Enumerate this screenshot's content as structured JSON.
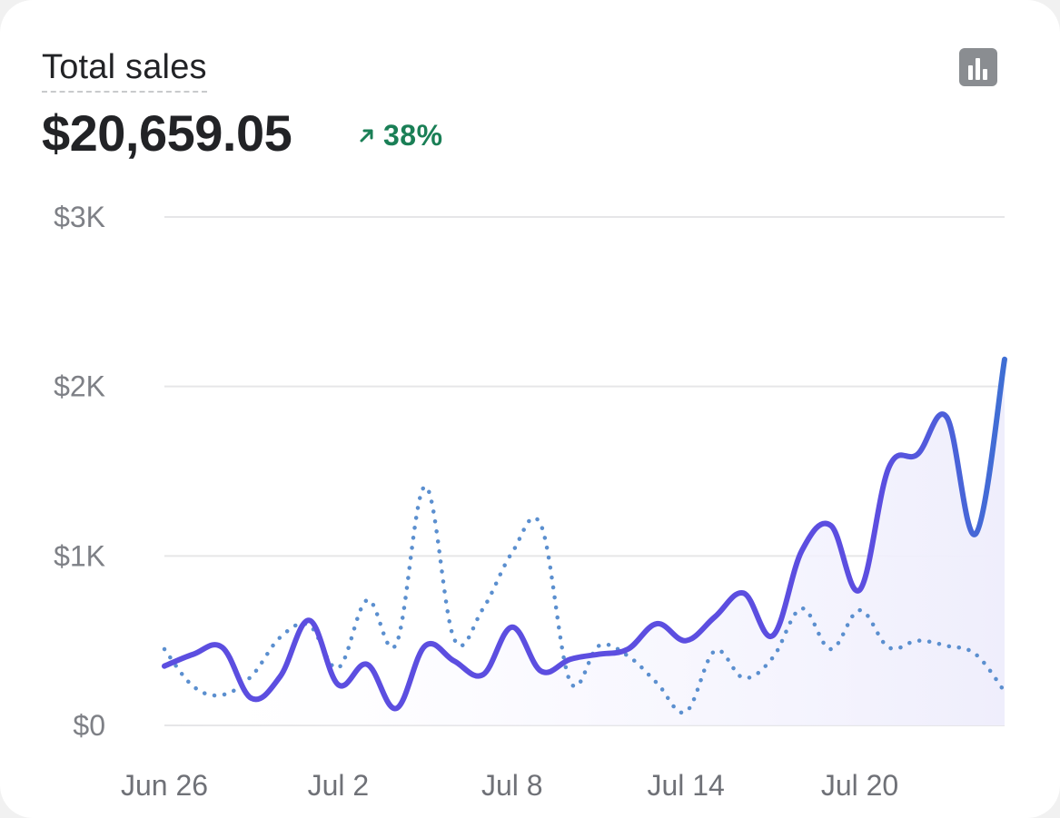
{
  "header": {
    "title": "Total sales",
    "total": "$20,659.05",
    "delta": "38%",
    "delta_direction": "up",
    "icons": {
      "chart_toggle": "bar-chart-icon",
      "delta": "arrow-up-right-icon"
    }
  },
  "colors": {
    "current_series": "#5c4ee0",
    "current_series_end": "#3f6fd4",
    "comparison_series": "#5b8fcf",
    "gridline": "#e6e6e8",
    "delta_positive": "#1a7f56"
  },
  "chart_data": {
    "type": "line",
    "title": "Total sales",
    "xlabel": "",
    "ylabel": "",
    "x": [
      "Jun 26",
      "Jun 27",
      "Jun 28",
      "Jun 29",
      "Jun 30",
      "Jul 1",
      "Jul 2",
      "Jul 3",
      "Jul 4",
      "Jul 5",
      "Jul 6",
      "Jul 7",
      "Jul 8",
      "Jul 9",
      "Jul 10",
      "Jul 11",
      "Jul 12",
      "Jul 13",
      "Jul 14",
      "Jul 15",
      "Jul 16",
      "Jul 17",
      "Jul 18",
      "Jul 19",
      "Jul 20",
      "Jul 21",
      "Jul 22",
      "Jul 23",
      "Jul 24",
      "Jul 25"
    ],
    "x_tick_labels": [
      "Jun 26",
      "Jul 2",
      "Jul 8",
      "Jul 14",
      "Jul 20"
    ],
    "ylim": [
      0,
      3000
    ],
    "y_ticks": [
      0,
      1000,
      2000,
      3000
    ],
    "y_tick_labels": [
      "$0",
      "$1K",
      "$2K",
      "$3K"
    ],
    "grid": true,
    "series": [
      {
        "style": "solid",
        "values": [
          350,
          420,
          460,
          160,
          290,
          620,
          240,
          360,
          100,
          470,
          380,
          300,
          580,
          320,
          390,
          420,
          450,
          600,
          500,
          640,
          780,
          530,
          1030,
          1180,
          800,
          1520,
          1600,
          1820,
          1130,
          2160
        ]
      },
      {
        "style": "dotted",
        "values": [
          450,
          230,
          180,
          290,
          520,
          590,
          340,
          740,
          480,
          1410,
          510,
          690,
          1020,
          1180,
          260,
          470,
          410,
          250,
          80,
          440,
          280,
          400,
          690,
          450,
          680,
          460,
          500,
          470,
          420,
          200
        ]
      }
    ]
  }
}
